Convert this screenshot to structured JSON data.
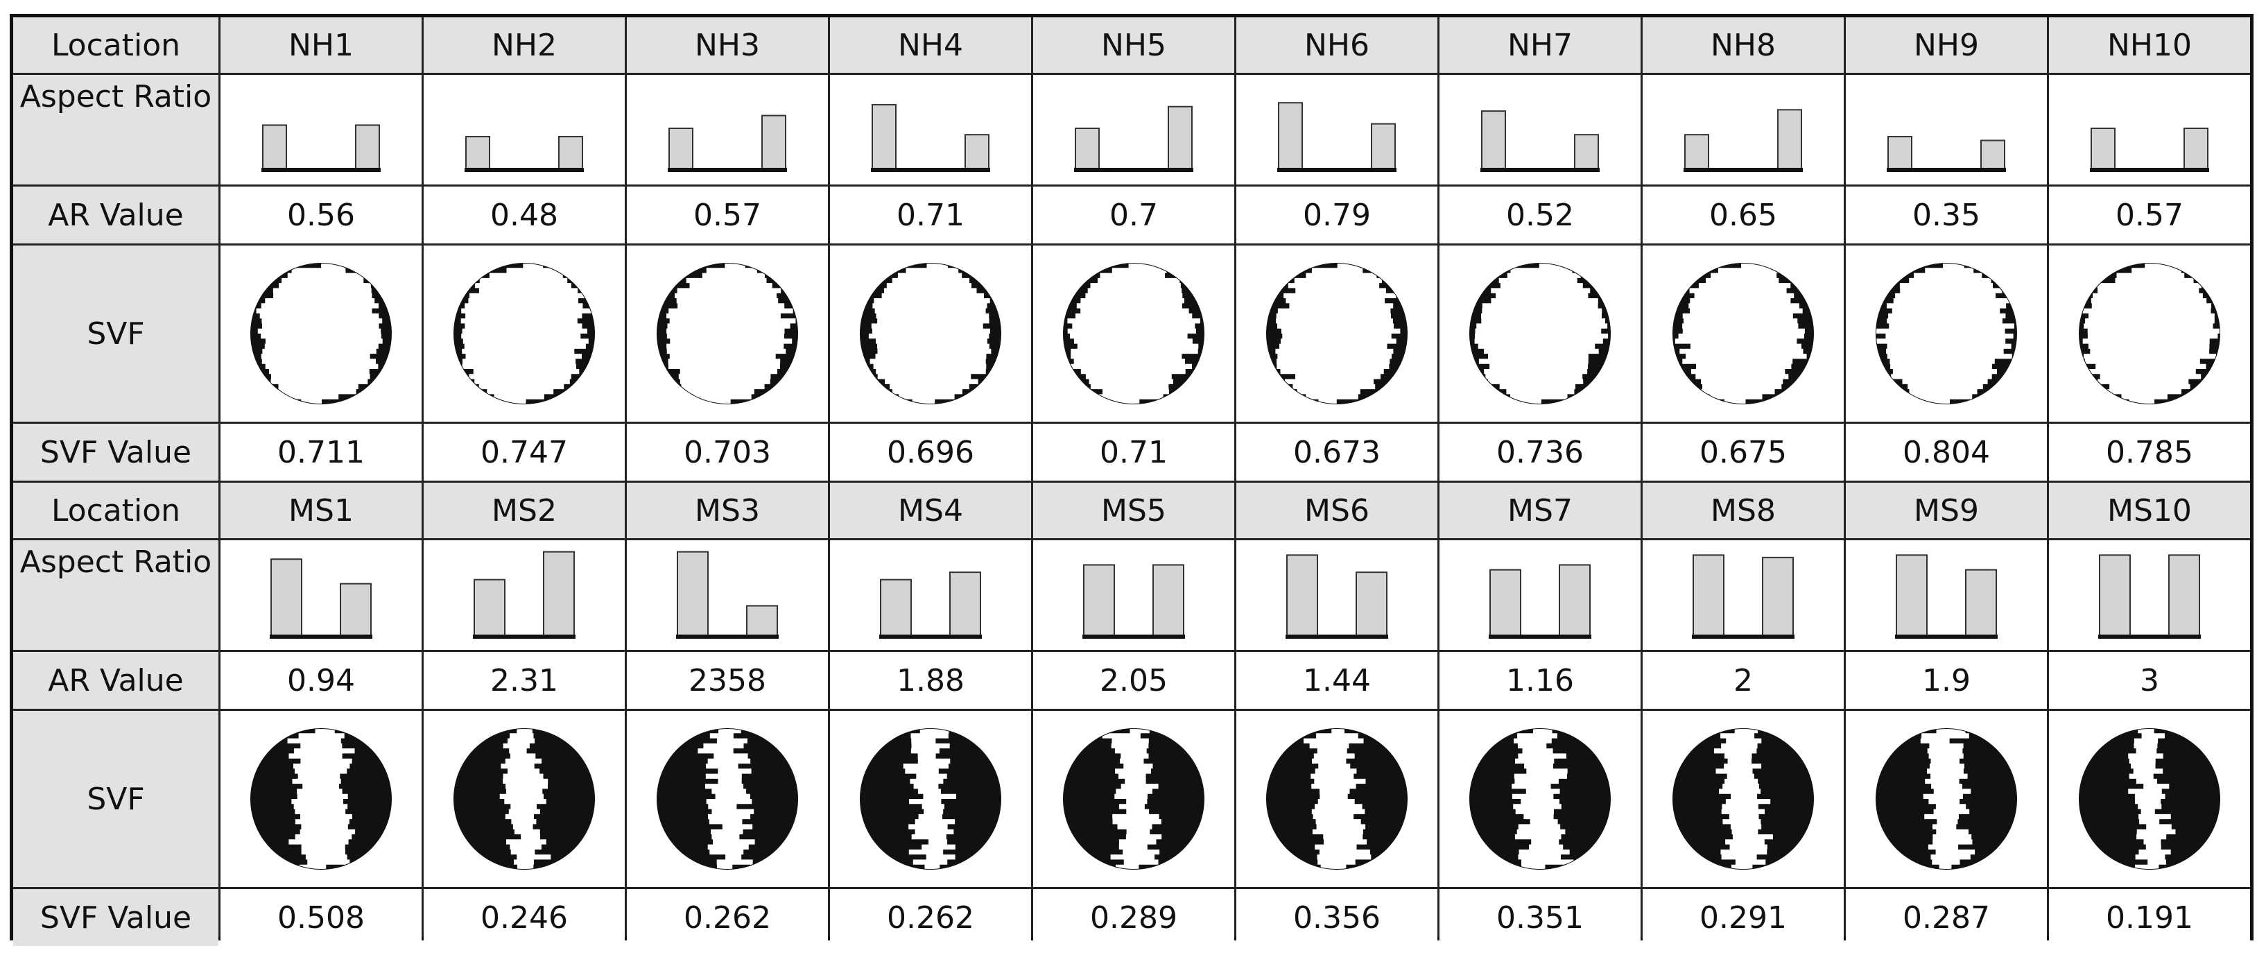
{
  "row_labels": {
    "location": "Location",
    "aspect_ratio": "Aspect Ratio",
    "ar_value": "AR Value",
    "svf": "SVF",
    "svf_value": "SVF Value"
  },
  "groups": [
    {
      "id": "nh",
      "locations": [
        {
          "name": "NH1",
          "ar_value": "0.56",
          "svf_value": "0.711",
          "left_h": 0.68,
          "right_h": 0.68,
          "svf_fraction": 0.711
        },
        {
          "name": "NH2",
          "ar_value": "0.48",
          "svf_value": "0.747",
          "left_h": 0.5,
          "right_h": 0.5,
          "svf_fraction": 0.747
        },
        {
          "name": "NH3",
          "ar_value": "0.57",
          "svf_value": "0.703",
          "left_h": 0.63,
          "right_h": 0.83,
          "svf_fraction": 0.703
        },
        {
          "name": "NH4",
          "ar_value": "0.71",
          "svf_value": "0.696",
          "left_h": 1.0,
          "right_h": 0.53,
          "svf_fraction": 0.696
        },
        {
          "name": "NH5",
          "ar_value": "0.7",
          "svf_value": "0.71",
          "left_h": 0.63,
          "right_h": 0.97,
          "svf_fraction": 0.71
        },
        {
          "name": "NH6",
          "ar_value": "0.79",
          "svf_value": "0.673",
          "left_h": 1.03,
          "right_h": 0.7,
          "svf_fraction": 0.673
        },
        {
          "name": "NH7",
          "ar_value": "0.52",
          "svf_value": "0.736",
          "left_h": 0.9,
          "right_h": 0.53,
          "svf_fraction": 0.736
        },
        {
          "name": "NH8",
          "ar_value": "0.65",
          "svf_value": "0.675",
          "left_h": 0.53,
          "right_h": 0.92,
          "svf_fraction": 0.675
        },
        {
          "name": "NH9",
          "ar_value": "0.35",
          "svf_value": "0.804",
          "left_h": 0.5,
          "right_h": 0.44,
          "svf_fraction": 0.804
        },
        {
          "name": "NH10",
          "ar_value": "0.57",
          "svf_value": "0.785",
          "left_h": 0.63,
          "right_h": 0.63,
          "svf_fraction": 0.785
        }
      ]
    },
    {
      "id": "ms",
      "locations": [
        {
          "name": "MS1",
          "ar_value": "0.94",
          "svf_value": "0.508",
          "left_h": 0.93,
          "right_h": 0.63,
          "svf_fraction": 0.508
        },
        {
          "name": "MS2",
          "ar_value": "2.31",
          "svf_value": "0.246",
          "left_h": 0.68,
          "right_h": 1.02,
          "svf_fraction": 0.246
        },
        {
          "name": "MS3",
          "ar_value": "2358",
          "svf_value": "0.262",
          "left_h": 1.02,
          "right_h": 0.36,
          "svf_fraction": 0.262
        },
        {
          "name": "MS4",
          "ar_value": "1.88",
          "svf_value": "0.262",
          "left_h": 0.68,
          "right_h": 0.77,
          "svf_fraction": 0.262
        },
        {
          "name": "MS5",
          "ar_value": "2.05",
          "svf_value": "0.289",
          "left_h": 0.86,
          "right_h": 0.86,
          "svf_fraction": 0.289
        },
        {
          "name": "MS6",
          "ar_value": "1.44",
          "svf_value": "0.356",
          "left_h": 0.98,
          "right_h": 0.77,
          "svf_fraction": 0.356
        },
        {
          "name": "MS7",
          "ar_value": "1.16",
          "svf_value": "0.351",
          "left_h": 0.8,
          "right_h": 0.86,
          "svf_fraction": 0.351
        },
        {
          "name": "MS8",
          "ar_value": "2",
          "svf_value": "0.291",
          "left_h": 0.98,
          "right_h": 0.95,
          "svf_fraction": 0.291
        },
        {
          "name": "MS9",
          "ar_value": "1.9",
          "svf_value": "0.287",
          "left_h": 0.98,
          "right_h": 0.8,
          "svf_fraction": 0.287
        },
        {
          "name": "MS10",
          "ar_value": "3",
          "svf_value": "0.191",
          "left_h": 0.98,
          "right_h": 0.98,
          "svf_fraction": 0.191
        }
      ]
    }
  ],
  "colors": {
    "header_fill": "#e2e2e2",
    "bar_fill": "#d4d4d4",
    "ink": "#111111",
    "grid_line": "#222222"
  }
}
